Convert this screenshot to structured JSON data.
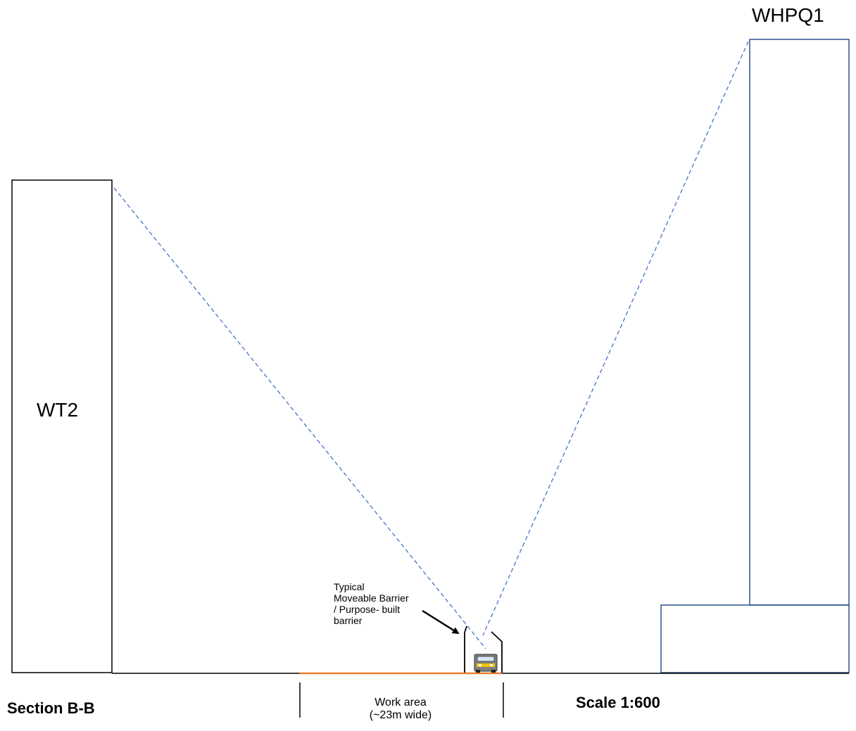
{
  "buildings": {
    "left_name": "WT2",
    "right_name": "WHPQ1"
  },
  "barrier": {
    "line1": "Typical",
    "line2": "Moveable Barrier",
    "line3": "/ Purpose- built",
    "line4": "barrier"
  },
  "work_area": {
    "line1": "Work area",
    "line2": "(~23m wide)"
  },
  "section_label": "Section B-B",
  "scale_label": "Scale 1:600",
  "colors": {
    "left_building_stroke": "#000000",
    "right_building_stroke": "#2F528F",
    "sightline": "#4472C4",
    "work_area_line": "#ED7D31",
    "ground": "#000000"
  },
  "icons": {
    "vehicle": "truck-icon",
    "callout": "arrow-icon"
  }
}
